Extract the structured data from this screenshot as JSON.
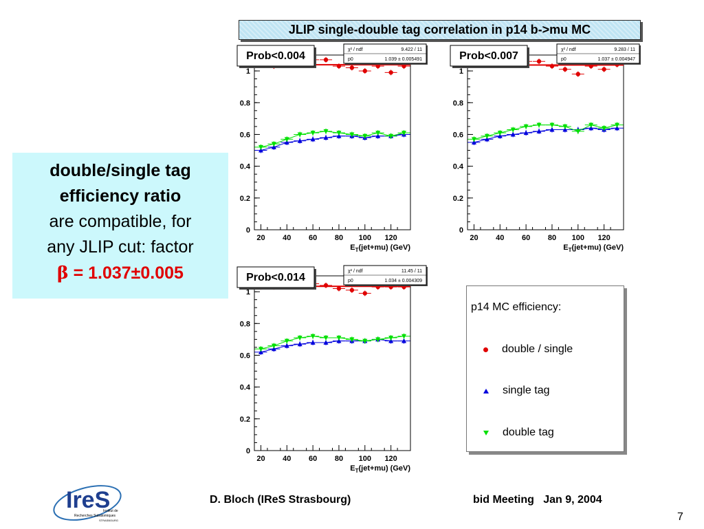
{
  "header": {
    "title": "JLIP single-double tag correlation in p14 b->mu MC"
  },
  "side_box": {
    "line1": "double/single tag",
    "line2": "efficiency ratio",
    "line3": "are compatible, for",
    "line4": "any JLIP cut: factor",
    "beta_symbol": "β",
    "beta_value": " = 1.037±0.005"
  },
  "legend": {
    "title": "p14 MC efficiency:",
    "items": [
      {
        "label": "double / single",
        "color": "#e00000",
        "marker": "circle"
      },
      {
        "label": "single tag",
        "color": "#0000dd",
        "marker": "triangle-up"
      },
      {
        "label": "double tag",
        "color": "#00e000",
        "marker": "triangle-down"
      }
    ]
  },
  "footer": {
    "author": "D. Bloch (IReS Strasbourg)",
    "meeting": "bid Meeting   Jan 9, 2004",
    "page": "7"
  },
  "logo": {
    "name": "ires",
    "line1": "Institut de",
    "line2": "Recherches Subatomiques",
    "line3": "STRASBOURG"
  },
  "colors": {
    "red": "#e00000",
    "blue": "#0000dd",
    "green": "#00e000",
    "header_bg": "#bfe4f3",
    "side_bg": "#ccf8fc"
  },
  "chart_data": [
    {
      "type": "scatter",
      "title": "Prob<0.004",
      "fit_label_1": "χ² / ndf",
      "fit_value_1": "9.422 / 11",
      "fit_label_2": "p0",
      "fit_value_2": "1.039 ± 0.005491",
      "fit_p0": 1.039,
      "xlabel_main": "E",
      "xlabel_sub": "T",
      "xlabel_rest": "(jet+mu) (GeV)",
      "xlim": [
        15,
        135
      ],
      "ylim": [
        0,
        1.1
      ],
      "xticks": [
        20,
        40,
        60,
        80,
        100,
        120
      ],
      "yticks": [
        0,
        0.2,
        0.4,
        0.6,
        0.8,
        1
      ],
      "x": [
        20,
        30,
        40,
        50,
        60,
        70,
        80,
        90,
        100,
        110,
        120,
        130
      ],
      "series": [
        {
          "name": "double / single",
          "values": [
            1.04,
            1.03,
            1.05,
            1.06,
            1.07,
            1.07,
            1.03,
            1.02,
            1.0,
            1.03,
            0.99,
            1.03
          ]
        },
        {
          "name": "single tag",
          "values": [
            0.5,
            0.52,
            0.55,
            0.56,
            0.57,
            0.58,
            0.59,
            0.59,
            0.58,
            0.59,
            0.59,
            0.6
          ]
        },
        {
          "name": "double tag",
          "values": [
            0.52,
            0.54,
            0.57,
            0.6,
            0.61,
            0.62,
            0.61,
            0.6,
            0.59,
            0.61,
            0.59,
            0.61
          ]
        }
      ]
    },
    {
      "type": "scatter",
      "title": "Prob<0.007",
      "fit_label_1": "χ² / ndf",
      "fit_value_1": "9.283 / 11",
      "fit_label_2": "p0",
      "fit_value_2": "1.037 ± 0.004947",
      "fit_p0": 1.037,
      "xlabel_main": "E",
      "xlabel_sub": "T",
      "xlabel_rest": "(jet+mu) (GeV)",
      "xlim": [
        15,
        135
      ],
      "ylim": [
        0,
        1.1
      ],
      "xticks": [
        20,
        40,
        60,
        80,
        100,
        120
      ],
      "yticks": [
        0,
        0.2,
        0.4,
        0.6,
        0.8,
        1
      ],
      "x": [
        20,
        30,
        40,
        50,
        60,
        70,
        80,
        90,
        100,
        110,
        120,
        130
      ],
      "series": [
        {
          "name": "double / single",
          "values": [
            1.04,
            1.04,
            1.05,
            1.05,
            1.06,
            1.06,
            1.03,
            1.01,
            0.98,
            1.03,
            1.01,
            1.04
          ]
        },
        {
          "name": "single tag",
          "values": [
            0.55,
            0.57,
            0.59,
            0.6,
            0.61,
            0.62,
            0.63,
            0.63,
            0.63,
            0.64,
            0.63,
            0.64
          ]
        },
        {
          "name": "double tag",
          "values": [
            0.57,
            0.59,
            0.61,
            0.63,
            0.65,
            0.66,
            0.66,
            0.65,
            0.62,
            0.66,
            0.64,
            0.66
          ]
        }
      ]
    },
    {
      "type": "scatter",
      "title": "Prob<0.014",
      "fit_label_1": "χ² / ndf",
      "fit_value_1": "11.45 / 11",
      "fit_label_2": "p0",
      "fit_value_2": "1.034 ± 0.004309",
      "fit_p0": 1.034,
      "xlabel_main": "E",
      "xlabel_sub": "T",
      "xlabel_rest": "(jet+mu) (GeV)",
      "xlim": [
        15,
        135
      ],
      "ylim": [
        0,
        1.1
      ],
      "xticks": [
        20,
        40,
        60,
        80,
        100,
        120
      ],
      "yticks": [
        0,
        0.2,
        0.4,
        0.6,
        0.8,
        1
      ],
      "x": [
        20,
        30,
        40,
        50,
        60,
        70,
        80,
        90,
        100,
        110,
        120,
        130
      ],
      "series": [
        {
          "name": "double / single",
          "values": [
            1.03,
            1.03,
            1.04,
            1.05,
            1.05,
            1.04,
            1.02,
            1.01,
            0.99,
            1.03,
            1.03,
            1.03
          ]
        },
        {
          "name": "single tag",
          "values": [
            0.62,
            0.64,
            0.66,
            0.67,
            0.68,
            0.68,
            0.69,
            0.69,
            0.69,
            0.7,
            0.69,
            0.69
          ]
        },
        {
          "name": "double tag",
          "values": [
            0.64,
            0.66,
            0.69,
            0.71,
            0.72,
            0.71,
            0.71,
            0.7,
            0.69,
            0.7,
            0.71,
            0.72
          ]
        }
      ]
    }
  ]
}
